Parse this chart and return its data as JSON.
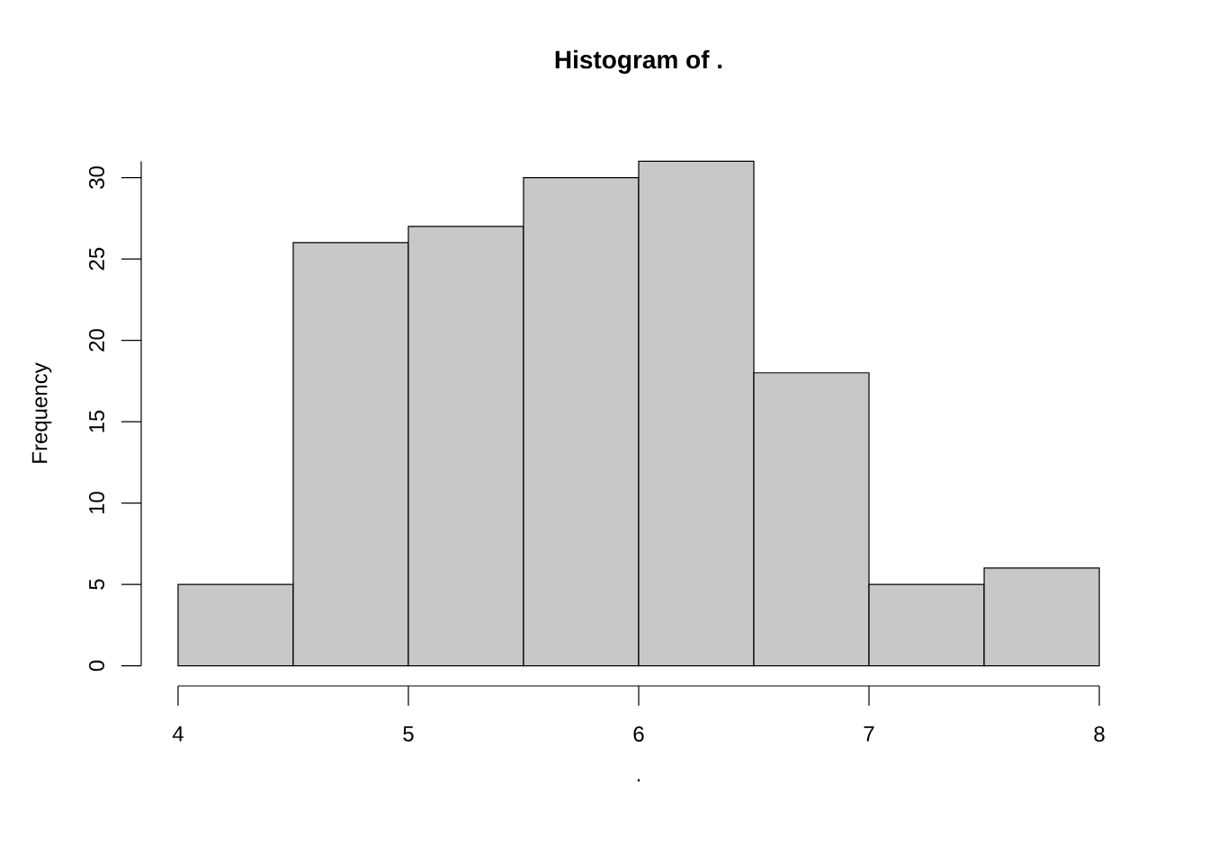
{
  "chart_data": {
    "type": "histogram",
    "title": "Histogram of .",
    "xlabel": ".",
    "ylabel": "Frequency",
    "bins": [
      4,
      4.5,
      5,
      5.5,
      6,
      6.5,
      7,
      7.5,
      8
    ],
    "values": [
      5,
      26,
      27,
      30,
      31,
      18,
      5,
      6
    ],
    "color": "#c8c8c8",
    "xlim": [
      4,
      8
    ],
    "ylim": [
      0,
      31
    ],
    "xticks": [
      4,
      5,
      6,
      7,
      8
    ],
    "yticks": [
      0,
      5,
      10,
      15,
      20,
      25,
      30
    ]
  }
}
